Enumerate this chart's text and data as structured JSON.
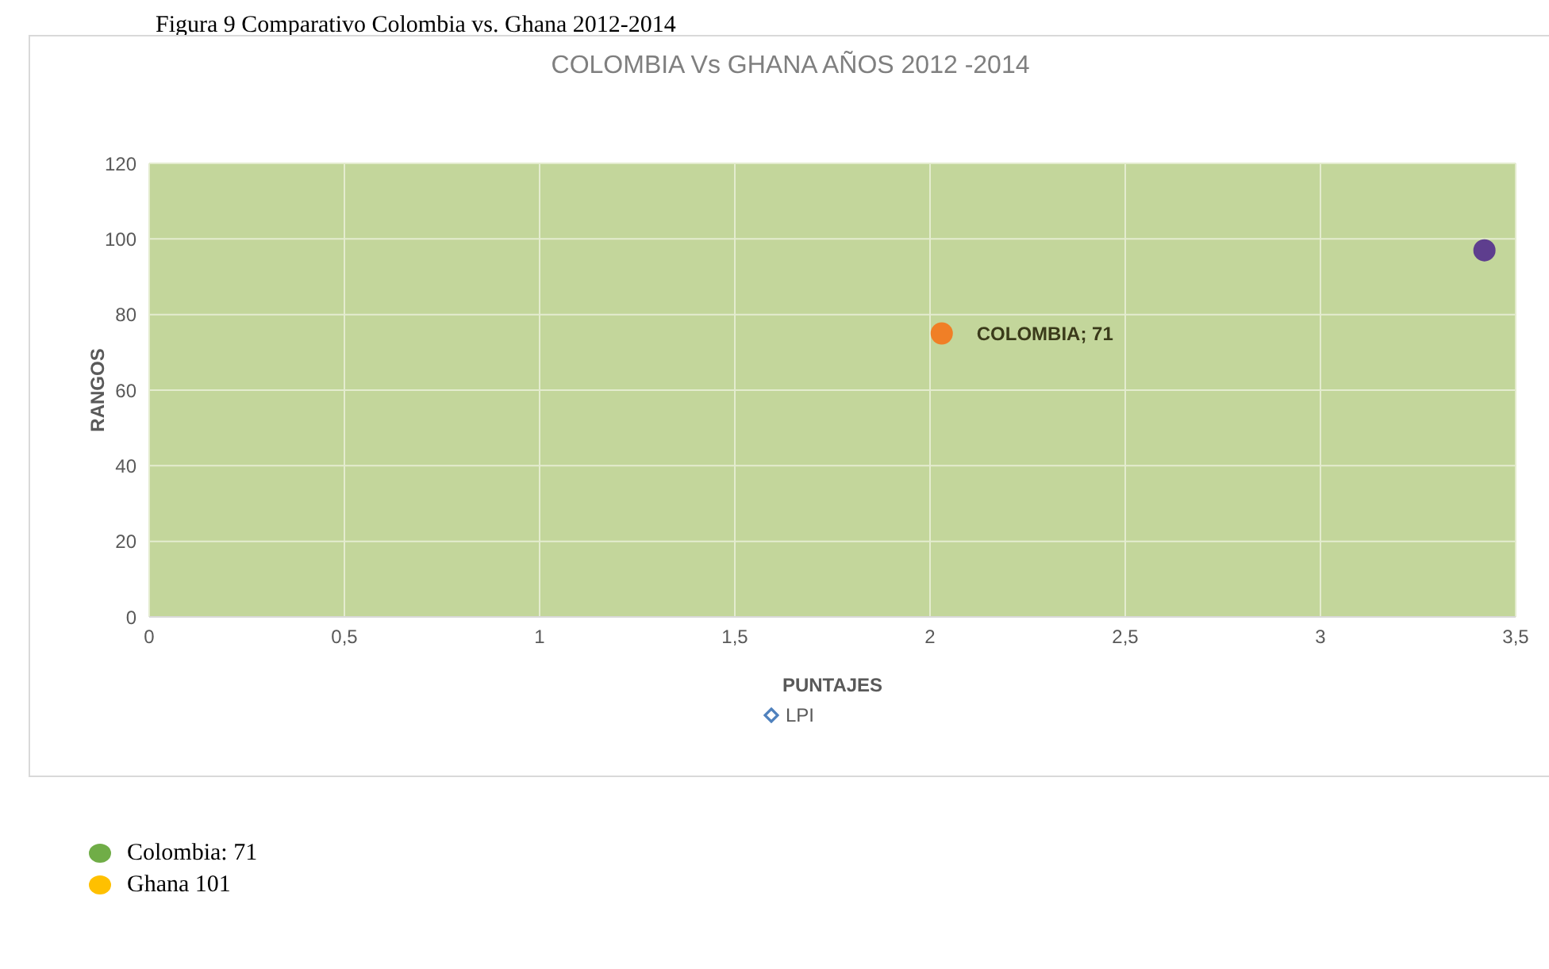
{
  "chart_data": {
    "type": "scatter",
    "title": "COLOMBIA Vs GHANA AÑOS 2012 -2014",
    "xlabel": "PUNTAJES",
    "ylabel": "RANGOS",
    "x": [
      2.03,
      3.42
    ],
    "series": [
      {
        "name": "LPI",
        "color": "#4f81bd",
        "colors": [
          "#f07f26",
          "#5e3e8e"
        ],
        "values": [
          75,
          97
        ]
      }
    ],
    "xlim": [
      0,
      3.5
    ],
    "xticks": [
      {
        "value": 0,
        "label": "0"
      },
      {
        "value": 0.5,
        "label": "0,5"
      },
      {
        "value": 1,
        "label": "1"
      },
      {
        "value": 1.5,
        "label": "1,5"
      },
      {
        "value": 2,
        "label": "2"
      },
      {
        "value": 2.5,
        "label": "2,5"
      },
      {
        "value": 3,
        "label": "3"
      },
      {
        "value": 3.5,
        "label": "3,5"
      }
    ],
    "ylim": [
      0,
      120
    ],
    "yticks": [
      0,
      20,
      40,
      60,
      80,
      100,
      120
    ],
    "grid": true,
    "legend": "bottom",
    "marker": "circle",
    "annotations": [
      "Figura 9 Comparativo Colombia vs. Ghana 2012-2014",
      {
        "text": "COLOMBIA; 71",
        "x": 2.03,
        "y": 75
      },
      "Colombia: 71",
      "Ghana 101"
    ]
  }
}
